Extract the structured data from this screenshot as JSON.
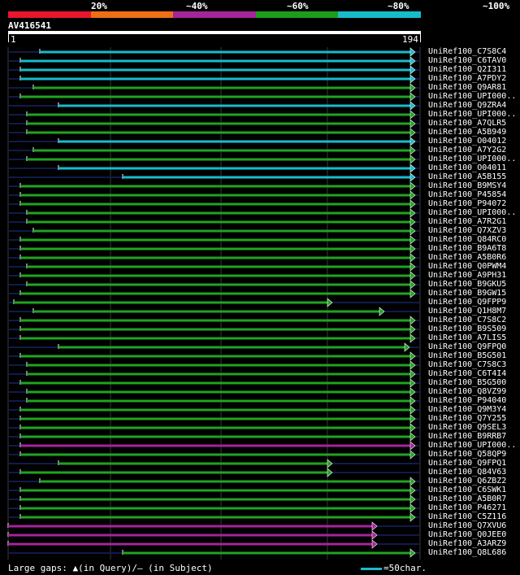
{
  "scale": {
    "labels": [
      "20%",
      "~40%",
      "~60%",
      "~80%",
      "~100%"
    ],
    "colors": [
      "#e8172d",
      "#ed7014",
      "#a5249a",
      "#1c9e1c",
      "#17bccb"
    ]
  },
  "query": {
    "title": "AV416541",
    "start": "1",
    "end": "194"
  },
  "colors": {
    "blue": "#17bccb",
    "green": "#21a321",
    "purple": "#a5249a",
    "dim": "#101a4a"
  },
  "hits": [
    {
      "label": "UniRef100_C7S8C4",
      "color": "blue",
      "start": 49,
      "end": 505
    },
    {
      "label": "UniRef100_C6TAV0",
      "color": "blue",
      "start": 25,
      "end": 505
    },
    {
      "label": "UniRef100_Q2I311",
      "color": "blue",
      "start": 25,
      "end": 505
    },
    {
      "label": "UniRef100_A7PDY2",
      "color": "blue",
      "start": 25,
      "end": 505
    },
    {
      "label": "UniRef100_Q9AR81",
      "color": "green",
      "start": 41,
      "end": 505
    },
    {
      "label": "UniRef100_UPI000..",
      "color": "green",
      "start": 25,
      "end": 505
    },
    {
      "label": "UniRef100_Q9ZRA4",
      "color": "blue",
      "start": 72,
      "end": 505
    },
    {
      "label": "UniRef100_UPI000..",
      "color": "green",
      "start": 33,
      "end": 505
    },
    {
      "label": "UniRef100_A7QLR5",
      "color": "green",
      "start": 33,
      "end": 505
    },
    {
      "label": "UniRef100_A5B949",
      "color": "green",
      "start": 33,
      "end": 505
    },
    {
      "label": "UniRef100_O04012",
      "color": "blue",
      "start": 72,
      "end": 505
    },
    {
      "label": "UniRef100_A7Y2G2",
      "color": "green",
      "start": 41,
      "end": 505
    },
    {
      "label": "UniRef100_UPI000..",
      "color": "green",
      "start": 33,
      "end": 505
    },
    {
      "label": "UniRef100_O04011",
      "color": "blue",
      "start": 72,
      "end": 505
    },
    {
      "label": "UniRef100_A5B155",
      "color": "blue",
      "start": 151,
      "end": 505
    },
    {
      "label": "UniRef100_B9MSY4",
      "color": "green",
      "start": 25,
      "end": 505
    },
    {
      "label": "UniRef100_P45854",
      "color": "green",
      "start": 25,
      "end": 505
    },
    {
      "label": "UniRef100_P94072",
      "color": "green",
      "start": 25,
      "end": 505
    },
    {
      "label": "UniRef100_UPI000..",
      "color": "green",
      "start": 33,
      "end": 505
    },
    {
      "label": "UniRef100_A7R2G1",
      "color": "green",
      "start": 33,
      "end": 505
    },
    {
      "label": "UniRef100_Q7XZV3",
      "color": "green",
      "start": 41,
      "end": 505
    },
    {
      "label": "UniRef100_Q84RC0",
      "color": "green",
      "start": 25,
      "end": 505
    },
    {
      "label": "UniRef100_B9A6T8",
      "color": "green",
      "start": 25,
      "end": 505
    },
    {
      "label": "UniRef100_A5B0R6",
      "color": "green",
      "start": 25,
      "end": 505
    },
    {
      "label": "UniRef100_Q0PWM4",
      "color": "green",
      "start": 33,
      "end": 505
    },
    {
      "label": "UniRef100_A9PH31",
      "color": "green",
      "start": 25,
      "end": 505
    },
    {
      "label": "UniRef100_B9GKU5",
      "color": "green",
      "start": 33,
      "end": 505
    },
    {
      "label": "UniRef100_B9GW15",
      "color": "green",
      "start": 25,
      "end": 505
    },
    {
      "label": "UniRef100_Q9FPP9",
      "color": "green",
      "start": 17,
      "end": 403
    },
    {
      "label": "UniRef100_Q1H8M7",
      "color": "green",
      "start": 41,
      "end": 467
    },
    {
      "label": "UniRef100_C7S8C2",
      "color": "green",
      "start": 25,
      "end": 505
    },
    {
      "label": "UniRef100_B9S509",
      "color": "green",
      "start": 25,
      "end": 505
    },
    {
      "label": "UniRef100_A7LIS5",
      "color": "green",
      "start": 25,
      "end": 505
    },
    {
      "label": "UniRef100_Q9FPQ0",
      "color": "green",
      "start": 72,
      "end": 498
    },
    {
      "label": "UniRef100_B5G501",
      "color": "green",
      "start": 25,
      "end": 505
    },
    {
      "label": "UniRef100_C7S8C3",
      "color": "green",
      "start": 33,
      "end": 505
    },
    {
      "label": "UniRef100_C6T4I4",
      "color": "green",
      "start": 33,
      "end": 505
    },
    {
      "label": "UniRef100_B5G500",
      "color": "green",
      "start": 25,
      "end": 505
    },
    {
      "label": "UniRef100_Q8VZ99",
      "color": "green",
      "start": 33,
      "end": 505
    },
    {
      "label": "UniRef100_P94040",
      "color": "green",
      "start": 33,
      "end": 505
    },
    {
      "label": "UniRef100_Q9M3Y4",
      "color": "green",
      "start": 25,
      "end": 505
    },
    {
      "label": "UniRef100_Q7Y255",
      "color": "green",
      "start": 25,
      "end": 505
    },
    {
      "label": "UniRef100_Q9SEL3",
      "color": "green",
      "start": 25,
      "end": 505
    },
    {
      "label": "UniRef100_B9RRB7",
      "color": "green",
      "start": 25,
      "end": 505
    },
    {
      "label": "UniRef100_UPI000..",
      "color": "purple",
      "start": 25,
      "end": 505
    },
    {
      "label": "UniRef100_Q58QP9",
      "color": "green",
      "start": 25,
      "end": 505
    },
    {
      "label": "UniRef100_Q9FPQ1",
      "color": "green",
      "start": 72,
      "end": 403
    },
    {
      "label": "UniRef100_Q84V63",
      "color": "green",
      "start": 25,
      "end": 403
    },
    {
      "label": "UniRef100_Q6ZBZ2",
      "color": "green",
      "start": 49,
      "end": 505
    },
    {
      "label": "UniRef100_C6SWK1",
      "color": "green",
      "start": 25,
      "end": 505
    },
    {
      "label": "UniRef100_A5B0R7",
      "color": "green",
      "start": 25,
      "end": 505
    },
    {
      "label": "UniRef100_P46271",
      "color": "green",
      "start": 25,
      "end": 505
    },
    {
      "label": "UniRef100_C5Z116",
      "color": "green",
      "start": 25,
      "end": 505
    },
    {
      "label": "UniRef100_Q7XVU6",
      "color": "purple",
      "start": 10,
      "end": 458
    },
    {
      "label": "UniRef100_Q0JEE0",
      "color": "purple",
      "start": 10,
      "end": 458
    },
    {
      "label": "UniRef100_A3ARZ9",
      "color": "purple",
      "start": 10,
      "end": 458
    },
    {
      "label": "UniRef100_Q8L686",
      "color": "green",
      "start": 151,
      "end": 505
    }
  ],
  "footer": {
    "gaps": "Large gaps: ▲(in Query)/— (in Subject)",
    "legend": "=50char."
  }
}
